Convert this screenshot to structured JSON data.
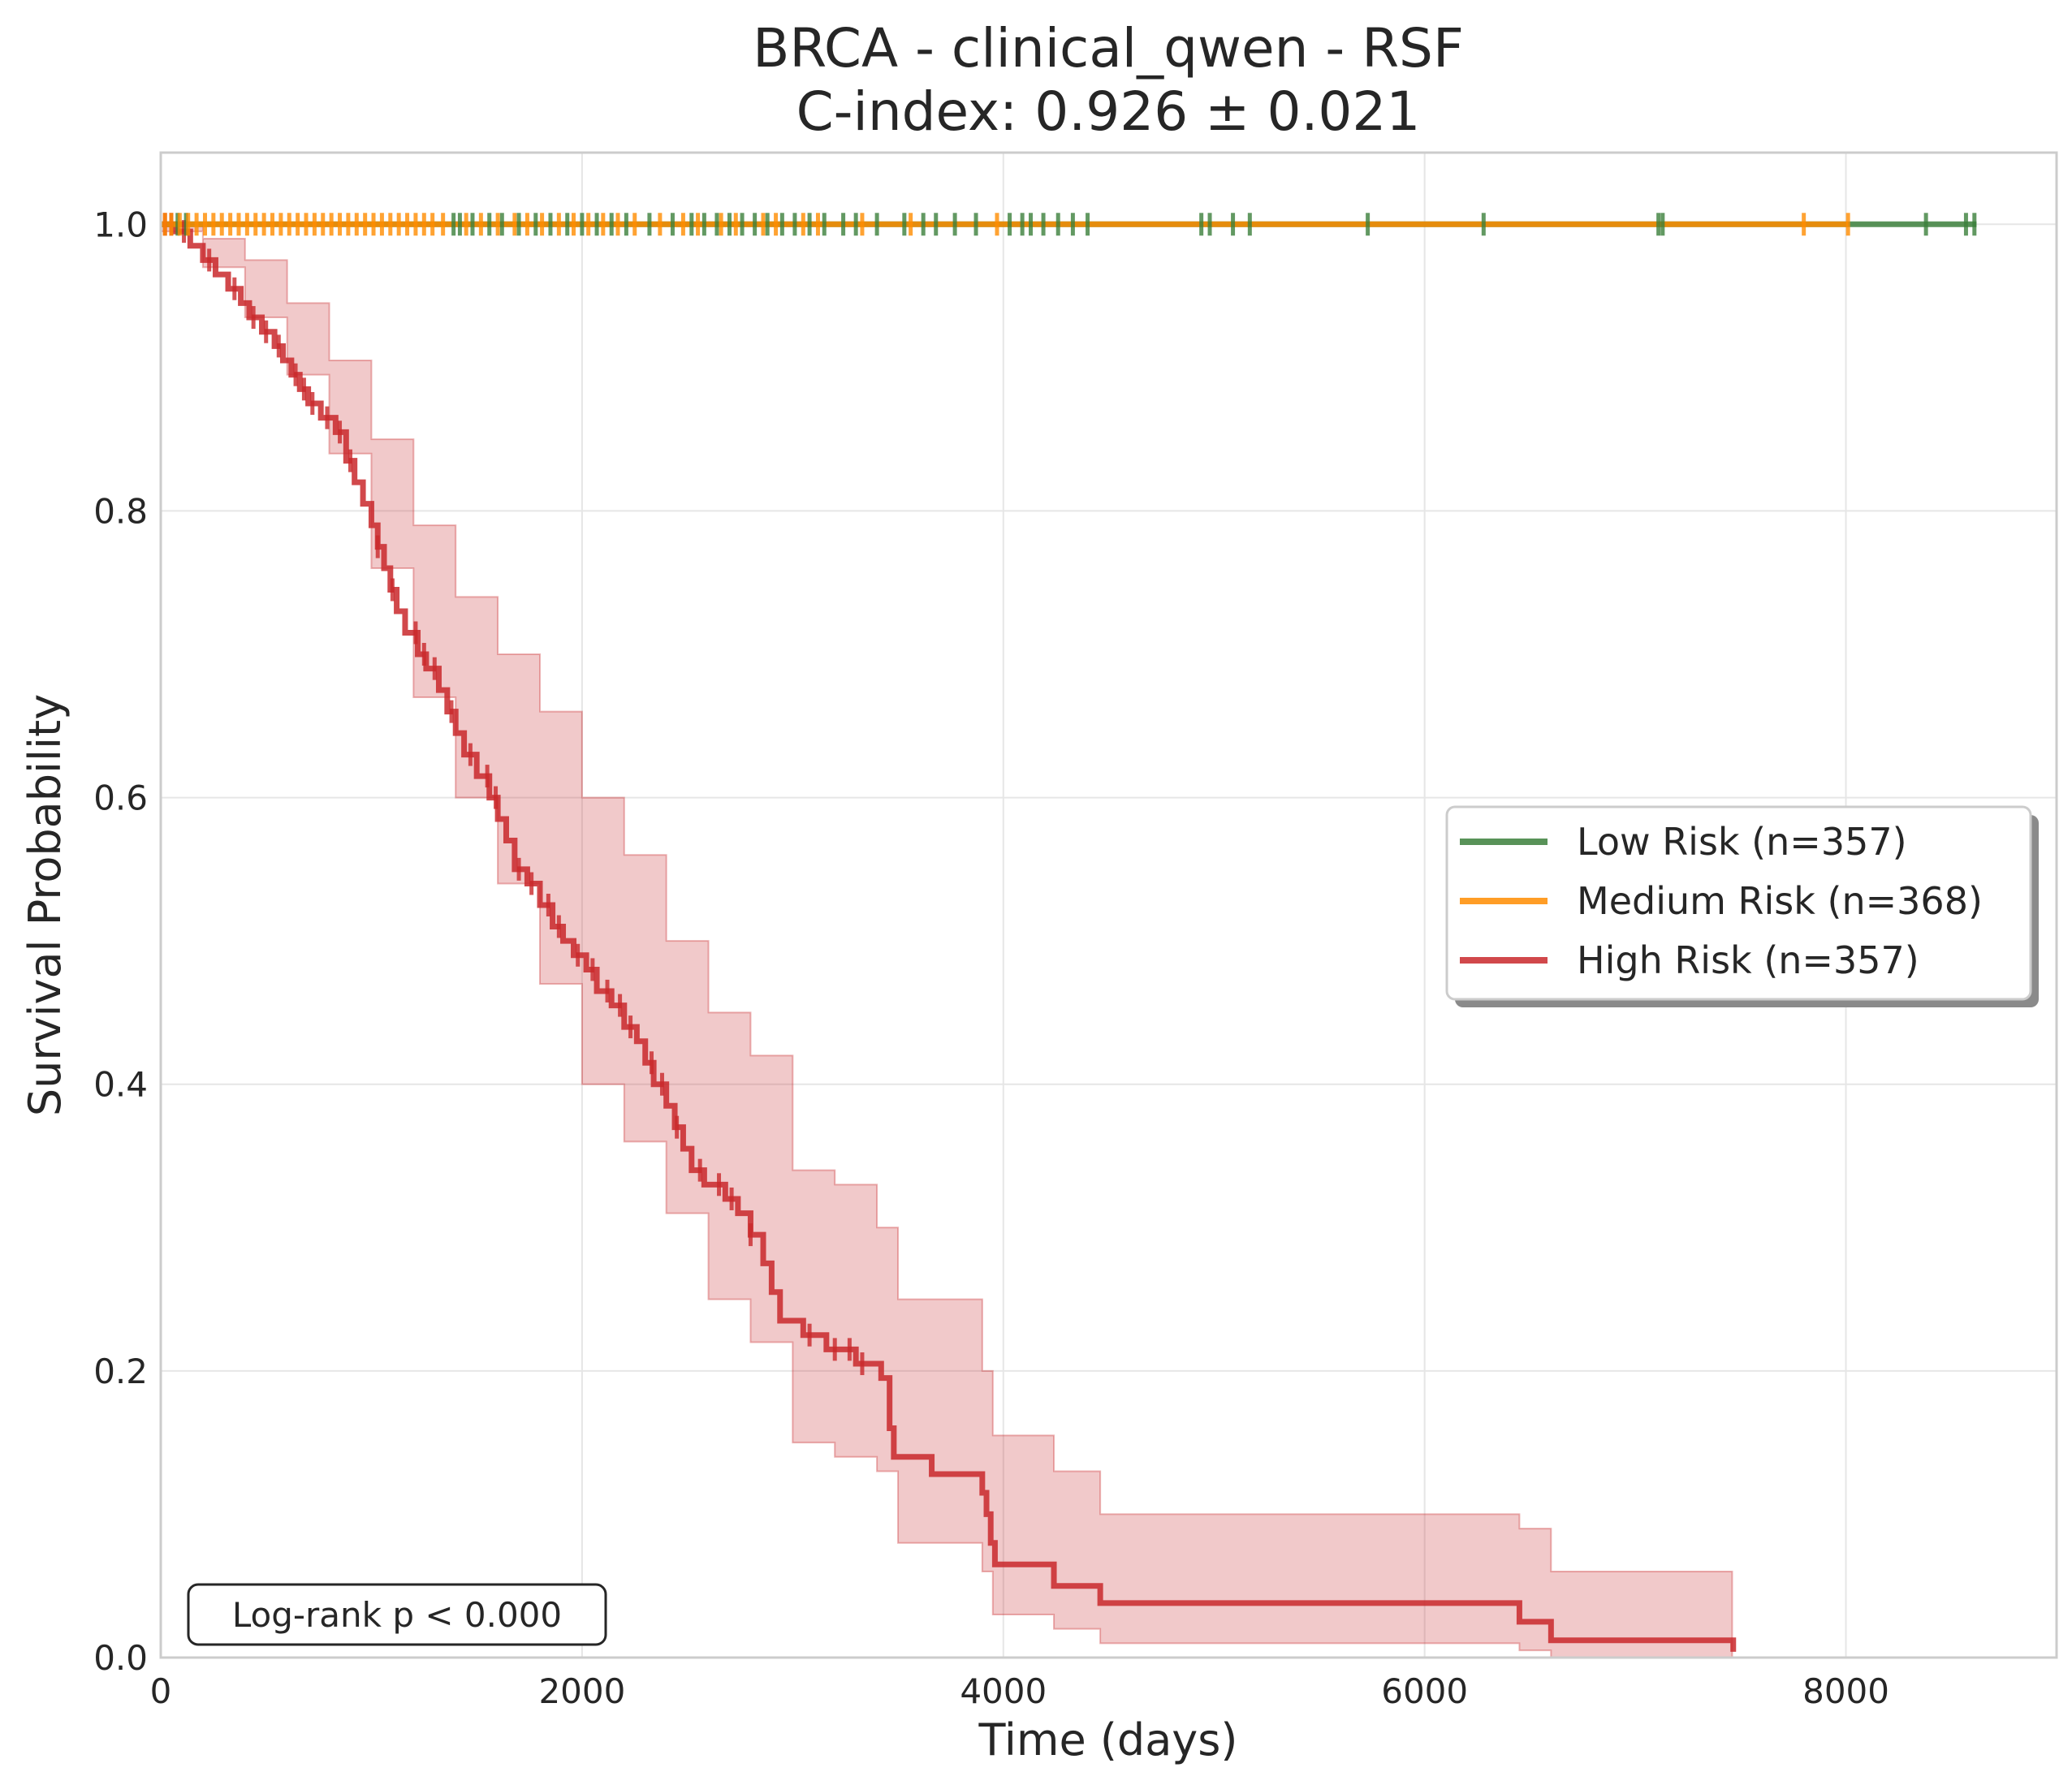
{
  "chart_data": {
    "type": "line",
    "title_line1": "BRCA - clinical_qwen - RSF",
    "title_line2": "C-index: 0.926 ± 0.021",
    "xlabel": "Time (days)",
    "ylabel": "Survival Probability",
    "xlim": [
      0,
      9000
    ],
    "ylim": [
      0,
      1.05
    ],
    "xticks": [
      0,
      2000,
      4000,
      6000,
      8000
    ],
    "yticks": [
      0.0,
      0.2,
      0.4,
      0.6,
      0.8,
      1.0
    ],
    "grid": true,
    "legend_position": "center-right",
    "annotation": "Log-rank p < 0.000",
    "series": [
      {
        "name": "Low Risk (n=357)",
        "color": "#3b7f3b",
        "survival": [
          [
            0,
            1.0
          ],
          [
            8620,
            1.0
          ]
        ],
        "censor_times": [
          80,
          120,
          1390,
          1420,
          1480,
          1560,
          1620,
          1700,
          1780,
          1850,
          1930,
          2000,
          2070,
          2140,
          2210,
          2320,
          2430,
          2520,
          2580,
          2640,
          2700,
          2760,
          2820,
          2880,
          2950,
          3010,
          3080,
          3150,
          3240,
          3300,
          3400,
          3530,
          3620,
          3680,
          3770,
          3870,
          4030,
          4090,
          4130,
          4190,
          4260,
          4330,
          4400,
          4940,
          4980,
          5090,
          5170,
          5730,
          6280,
          7110,
          7130,
          8380,
          8570,
          8610
        ]
      },
      {
        "name": "Medium Risk (n=368)",
        "color": "#ff8c00",
        "survival": [
          [
            0,
            1.0
          ],
          [
            8010,
            1.0
          ]
        ],
        "censor_times": [
          20,
          50,
          90,
          130,
          170,
          210,
          250,
          290,
          330,
          370,
          410,
          450,
          490,
          530,
          570,
          610,
          650,
          690,
          730,
          770,
          810,
          850,
          890,
          930,
          970,
          1010,
          1050,
          1090,
          1130,
          1170,
          1210,
          1250,
          1290,
          1340,
          1450,
          1520,
          1600,
          1680,
          1740,
          1810,
          1890,
          1960,
          2030,
          2100,
          2170,
          2250,
          2370,
          2480,
          2550,
          2660,
          2730,
          2860,
          2920,
          3050,
          3120,
          3330,
          3560,
          3970,
          7800,
          8010
        ]
      },
      {
        "name": "High Risk (n=357)",
        "color": "#c9282b",
        "survival": [
          [
            0,
            1.0
          ],
          [
            70,
            0.995
          ],
          [
            140,
            0.985
          ],
          [
            200,
            0.975
          ],
          [
            260,
            0.965
          ],
          [
            320,
            0.955
          ],
          [
            380,
            0.945
          ],
          [
            420,
            0.935
          ],
          [
            480,
            0.925
          ],
          [
            540,
            0.915
          ],
          [
            580,
            0.905
          ],
          [
            620,
            0.895
          ],
          [
            660,
            0.885
          ],
          [
            700,
            0.875
          ],
          [
            760,
            0.865
          ],
          [
            830,
            0.855
          ],
          [
            880,
            0.835
          ],
          [
            920,
            0.82
          ],
          [
            960,
            0.805
          ],
          [
            1000,
            0.79
          ],
          [
            1030,
            0.775
          ],
          [
            1060,
            0.76
          ],
          [
            1090,
            0.745
          ],
          [
            1120,
            0.73
          ],
          [
            1160,
            0.715
          ],
          [
            1220,
            0.7
          ],
          [
            1260,
            0.69
          ],
          [
            1320,
            0.675
          ],
          [
            1360,
            0.66
          ],
          [
            1400,
            0.645
          ],
          [
            1440,
            0.63
          ],
          [
            1500,
            0.615
          ],
          [
            1560,
            0.6
          ],
          [
            1600,
            0.585
          ],
          [
            1640,
            0.57
          ],
          [
            1680,
            0.55
          ],
          [
            1740,
            0.54
          ],
          [
            1800,
            0.525
          ],
          [
            1860,
            0.51
          ],
          [
            1910,
            0.5
          ],
          [
            1960,
            0.49
          ],
          [
            2020,
            0.48
          ],
          [
            2070,
            0.465
          ],
          [
            2140,
            0.455
          ],
          [
            2200,
            0.44
          ],
          [
            2260,
            0.43
          ],
          [
            2300,
            0.415
          ],
          [
            2340,
            0.4
          ],
          [
            2400,
            0.385
          ],
          [
            2440,
            0.37
          ],
          [
            2480,
            0.355
          ],
          [
            2520,
            0.34
          ],
          [
            2580,
            0.33
          ],
          [
            2680,
            0.32
          ],
          [
            2740,
            0.31
          ],
          [
            2800,
            0.295
          ],
          [
            2860,
            0.275
          ],
          [
            2900,
            0.255
          ],
          [
            2940,
            0.235
          ],
          [
            3050,
            0.225
          ],
          [
            3160,
            0.215
          ],
          [
            3300,
            0.205
          ],
          [
            3420,
            0.195
          ],
          [
            3460,
            0.16
          ],
          [
            3480,
            0.14
          ],
          [
            3660,
            0.128
          ],
          [
            3900,
            0.115
          ],
          [
            3920,
            0.1
          ],
          [
            3940,
            0.08
          ],
          [
            3960,
            0.065
          ],
          [
            4240,
            0.05
          ],
          [
            4460,
            0.038
          ],
          [
            6450,
            0.025
          ],
          [
            6600,
            0.012
          ],
          [
            7460,
            0.012
          ],
          [
            7465,
            0.004
          ]
        ],
        "ci_upper": [
          [
            0,
            1.0
          ],
          [
            200,
            0.99
          ],
          [
            400,
            0.975
          ],
          [
            600,
            0.945
          ],
          [
            800,
            0.905
          ],
          [
            1000,
            0.85
          ],
          [
            1200,
            0.79
          ],
          [
            1400,
            0.74
          ],
          [
            1600,
            0.7
          ],
          [
            1800,
            0.66
          ],
          [
            2000,
            0.6
          ],
          [
            2200,
            0.56
          ],
          [
            2400,
            0.5
          ],
          [
            2600,
            0.45
          ],
          [
            2800,
            0.42
          ],
          [
            3000,
            0.34
          ],
          [
            3200,
            0.33
          ],
          [
            3400,
            0.3
          ],
          [
            3500,
            0.25
          ],
          [
            3900,
            0.2
          ],
          [
            3950,
            0.155
          ],
          [
            4240,
            0.13
          ],
          [
            4460,
            0.1
          ],
          [
            6450,
            0.09
          ],
          [
            6600,
            0.06
          ],
          [
            7460,
            0.06
          ]
        ],
        "ci_lower": [
          [
            0,
            0.995
          ],
          [
            200,
            0.97
          ],
          [
            400,
            0.935
          ],
          [
            600,
            0.895
          ],
          [
            800,
            0.84
          ],
          [
            1000,
            0.76
          ],
          [
            1200,
            0.67
          ],
          [
            1400,
            0.6
          ],
          [
            1600,
            0.54
          ],
          [
            1800,
            0.47
          ],
          [
            2000,
            0.4
          ],
          [
            2200,
            0.36
          ],
          [
            2400,
            0.31
          ],
          [
            2600,
            0.25
          ],
          [
            2800,
            0.22
          ],
          [
            3000,
            0.15
          ],
          [
            3200,
            0.14
          ],
          [
            3400,
            0.13
          ],
          [
            3500,
            0.08
          ],
          [
            3900,
            0.06
          ],
          [
            3950,
            0.03
          ],
          [
            4240,
            0.02
          ],
          [
            4460,
            0.01
          ],
          [
            6450,
            0.005
          ],
          [
            6600,
            0.0
          ],
          [
            7460,
            0.0
          ]
        ],
        "censor_times": [
          20,
          50,
          110,
          230,
          350,
          440,
          500,
          560,
          640,
          680,
          720,
          790,
          850,
          900,
          1030,
          1100,
          1210,
          1250,
          1300,
          1380,
          1470,
          1550,
          1590,
          1700,
          1760,
          1840,
          1890,
          1980,
          2050,
          2120,
          2180,
          2230,
          2330,
          2380,
          2450,
          2560,
          2650,
          2710,
          2800,
          3080,
          3200,
          3270,
          3330
        ]
      }
    ]
  }
}
